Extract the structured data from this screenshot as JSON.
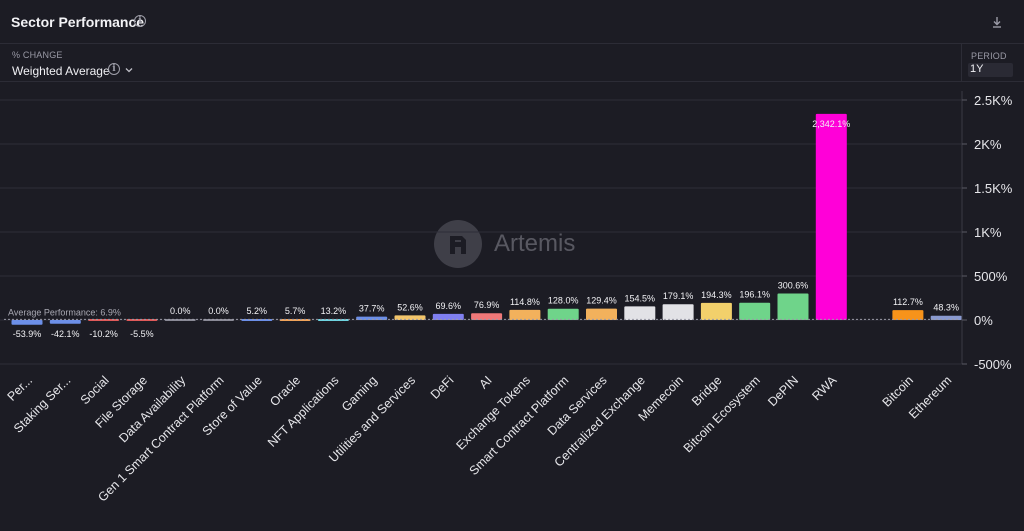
{
  "header": {
    "title": "Sector Performance",
    "info_icon": "info-icon",
    "download_icon": "download-icon"
  },
  "controls": {
    "metric_label": "% CHANGE",
    "metric_value": "Weighted Average",
    "period_label": "PERIOD",
    "period_value": "1Y"
  },
  "watermark": {
    "text": "Artemis",
    "icon": "artemis-logo-icon"
  },
  "colors": {
    "background": "#1c1c24",
    "grid": "#34343e",
    "rwa": "#ff00d8",
    "avg_line": "#9a9aa6"
  },
  "chart_data": {
    "type": "bar",
    "average_label": "Average Performance: 6.9%",
    "average_value": 6.9,
    "ylim": [
      -500,
      2500
    ],
    "y_ticks": [
      {
        "value": 2500,
        "label": "2.5K%"
      },
      {
        "value": 2000,
        "label": "2K%"
      },
      {
        "value": 1500,
        "label": "1.5K%"
      },
      {
        "value": 1000,
        "label": "1K%"
      },
      {
        "value": 500,
        "label": "500%"
      },
      {
        "value": 0,
        "label": "0%"
      },
      {
        "value": -500,
        "label": "-500%"
      }
    ],
    "categories": [
      {
        "name": "Per...",
        "value": -53.9,
        "label": "-53.9%",
        "color": "#6c8fe8"
      },
      {
        "name": "Staking Ser...",
        "value": -42.1,
        "label": "-42.1%",
        "color": "#6c8fe8"
      },
      {
        "name": "Social",
        "value": -10.2,
        "label": "-10.2%",
        "color": "#e05a5a"
      },
      {
        "name": "File Storage",
        "value": -5.5,
        "label": "-5.5%",
        "color": "#e05a5a"
      },
      {
        "name": "Data Availability",
        "value": 0.0,
        "label": "0.0%",
        "color": "#8a8a96"
      },
      {
        "name": "Gen 1 Smart Contract Platform",
        "value": 0.0,
        "label": "0.0%",
        "color": "#8a8a96"
      },
      {
        "name": "Store of Value",
        "value": 5.2,
        "label": "5.2%",
        "color": "#6c8fe8"
      },
      {
        "name": "Oracle",
        "value": 5.7,
        "label": "5.7%",
        "color": "#f0a35a"
      },
      {
        "name": "NFT Applications",
        "value": 13.2,
        "label": "13.2%",
        "color": "#6fd4e0"
      },
      {
        "name": "Gaming",
        "value": 37.7,
        "label": "37.7%",
        "color": "#6c8fe8"
      },
      {
        "name": "Utilities and Services",
        "value": 52.6,
        "label": "52.6%",
        "color": "#f2c56b"
      },
      {
        "name": "DeFi",
        "value": 69.6,
        "label": "69.6%",
        "color": "#7f7ff0"
      },
      {
        "name": "AI",
        "value": 76.9,
        "label": "76.9%",
        "color": "#f07878"
      },
      {
        "name": "Exchange Tokens",
        "value": 114.8,
        "label": "114.8%",
        "color": "#f2b15c"
      },
      {
        "name": "Smart Contract Platform",
        "value": 128.0,
        "label": "128.0%",
        "color": "#6fd48a"
      },
      {
        "name": "Data Services",
        "value": 129.4,
        "label": "129.4%",
        "color": "#f2b15c"
      },
      {
        "name": "Centralized Exchange",
        "value": 154.5,
        "label": "154.5%",
        "color": "#e2e2e6"
      },
      {
        "name": "Memecoin",
        "value": 179.1,
        "label": "179.1%",
        "color": "#e2e2e6"
      },
      {
        "name": "Bridge",
        "value": 194.3,
        "label": "194.3%",
        "color": "#f2d06b"
      },
      {
        "name": "Bitcoin Ecosystem",
        "value": 196.1,
        "label": "196.1%",
        "color": "#6fd48a"
      },
      {
        "name": "DePIN",
        "value": 300.6,
        "label": "300.6%",
        "color": "#6fd48a"
      },
      {
        "name": "RWA",
        "value": 2342.1,
        "label": "2,342.1%",
        "color": "#ff00d8"
      },
      {
        "name": "",
        "value": null,
        "label": "",
        "color": ""
      },
      {
        "name": "Bitcoin",
        "value": 112.7,
        "label": "112.7%",
        "color": "#f7931a"
      },
      {
        "name": "Ethereum",
        "value": 48.3,
        "label": "48.3%",
        "color": "#8a9ad0"
      }
    ]
  }
}
